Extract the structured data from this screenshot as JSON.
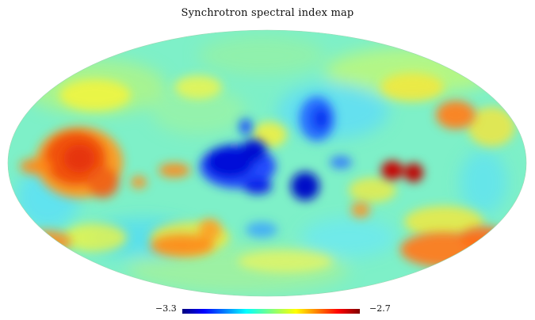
{
  "title": "Synchrotron spectral index map",
  "colorbar": {
    "min_label": "−3.3",
    "max_label": "−2.7"
  },
  "map": {
    "projection": "mollweide",
    "colormap": "jet",
    "background_level": "cyan-green",
    "features": [
      {
        "name": "red-region-left",
        "color": "#ee4411"
      },
      {
        "name": "dark-blue-center-left",
        "color": "#0011cc"
      },
      {
        "name": "dark-blue-center",
        "color": "#0022dd"
      },
      {
        "name": "dark-red-right",
        "color": "#cc0000"
      },
      {
        "name": "orange-region-lower-right",
        "color": "#ff6622"
      }
    ]
  }
}
